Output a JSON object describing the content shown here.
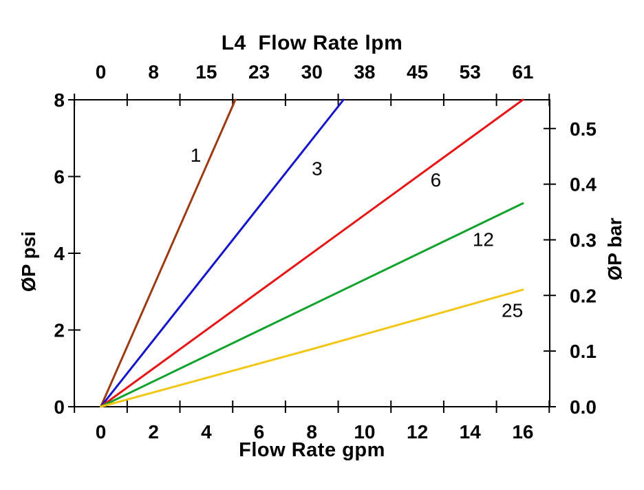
{
  "chart_data": {
    "type": "line",
    "background": "#FFFFFF",
    "frame_color": "#000000",
    "text_color": "#000000",
    "grid": false,
    "legend": "inline-labels-on-lines",
    "top_axis": {
      "title": "L4  Flow Rate lpm",
      "tick_labels": [
        "0",
        "8",
        "15",
        "23",
        "30",
        "38",
        "45",
        "53",
        "61"
      ],
      "label_values_gpm": [
        0,
        2,
        4,
        6,
        8,
        10,
        12,
        14,
        16
      ],
      "unit": "lpm"
    },
    "bottom_axis": {
      "title": "Flow Rate gpm",
      "tick_labels": [
        "0",
        "2",
        "4",
        "6",
        "8",
        "10",
        "12",
        "14",
        "16"
      ],
      "label_values_gpm": [
        0,
        2,
        4,
        6,
        8,
        10,
        12,
        14,
        16
      ],
      "boundary_tick_values_gpm": [
        -1,
        1,
        3,
        5,
        7,
        9,
        11,
        13,
        15,
        17
      ],
      "xlim_gpm": [
        -1,
        17
      ],
      "unit": "gpm"
    },
    "left_axis": {
      "title": "ØP psi",
      "tick_labels": [
        "0",
        "2",
        "4",
        "6",
        "8"
      ],
      "tick_values_psi": [
        0,
        2,
        4,
        6,
        8
      ],
      "ylim_psi": [
        0,
        8
      ],
      "unit": "psi"
    },
    "right_axis": {
      "title": "ØP bar",
      "tick_labels": [
        "0.0",
        "0.1",
        "0.2",
        "0.3",
        "0.4",
        "0.5"
      ],
      "tick_values_bar": [
        0,
        0.1,
        0.2,
        0.3,
        0.4,
        0.5
      ],
      "unit": "bar"
    },
    "series": [
      {
        "name": "1",
        "color": "#9C3A12",
        "points_gpm_psi": [
          [
            0,
            0
          ],
          [
            5.1,
            8
          ]
        ],
        "label_pos_gpm_psi": [
          3.6,
          6.55
        ]
      },
      {
        "name": "3",
        "color": "#1414CC",
        "points_gpm_psi": [
          [
            0,
            0
          ],
          [
            9.2,
            8
          ]
        ],
        "label_pos_gpm_psi": [
          8.2,
          6.2
        ]
      },
      {
        "name": "6",
        "color": "#E81414",
        "points_gpm_psi": [
          [
            0,
            0
          ],
          [
            16,
            8
          ]
        ],
        "label_pos_gpm_psi": [
          12.7,
          5.9
        ]
      },
      {
        "name": "12",
        "color": "#0FA32B",
        "points_gpm_psi": [
          [
            0,
            0
          ],
          [
            16,
            5.3
          ]
        ],
        "label_pos_gpm_psi": [
          14.5,
          4.35
        ]
      },
      {
        "name": "25",
        "color": "#F2C614",
        "points_gpm_psi": [
          [
            0,
            0
          ],
          [
            8,
            1.5
          ],
          [
            16,
            3.05
          ]
        ],
        "label_pos_gpm_psi": [
          15.6,
          2.5
        ]
      }
    ]
  }
}
